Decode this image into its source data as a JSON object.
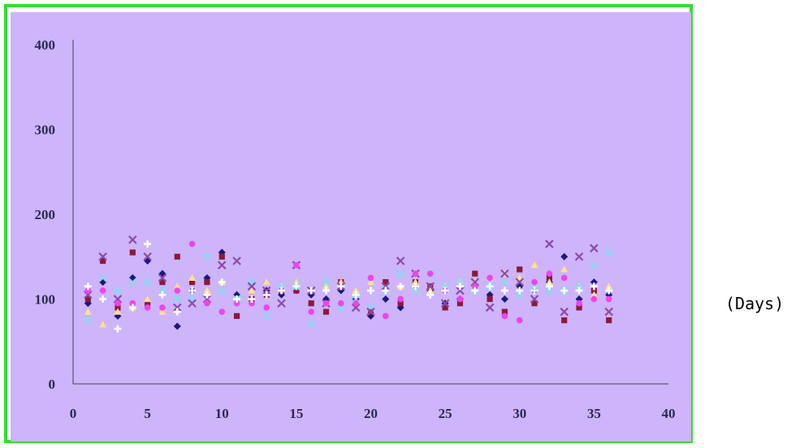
{
  "chart_data": {
    "type": "scatter",
    "title": "",
    "xlabel": "(Days)",
    "ylabel": "",
    "xlim": [
      0,
      40
    ],
    "ylim": [
      0,
      400
    ],
    "x_ticks": [
      "0",
      "5",
      "10",
      "15",
      "20",
      "25",
      "30",
      "35",
      "40"
    ],
    "y_ticks": [
      "0",
      "100",
      "200",
      "300",
      "400"
    ],
    "background_color": "#cdb4fb",
    "frame_color": "#33dd33",
    "grid": false,
    "legend": "none",
    "series": [
      {
        "color": "#1a1a7a",
        "marker": "diamond",
        "points": [
          [
            1,
            95
          ],
          [
            2,
            120
          ],
          [
            3,
            80
          ],
          [
            4,
            125
          ],
          [
            5,
            145
          ],
          [
            6,
            130
          ],
          [
            7,
            68
          ],
          [
            8,
            110
          ],
          [
            9,
            125
          ],
          [
            10,
            155
          ],
          [
            11,
            105
          ],
          [
            12,
            100
          ],
          [
            13,
            110
          ],
          [
            14,
            105
          ],
          [
            15,
            110
          ],
          [
            16,
            105
          ],
          [
            17,
            100
          ],
          [
            18,
            110
          ],
          [
            19,
            100
          ],
          [
            20,
            80
          ],
          [
            21,
            100
          ],
          [
            22,
            90
          ],
          [
            23,
            115
          ],
          [
            24,
            110
          ],
          [
            25,
            95
          ],
          [
            26,
            100
          ],
          [
            27,
            115
          ],
          [
            28,
            105
          ],
          [
            29,
            100
          ],
          [
            30,
            115
          ],
          [
            31,
            110
          ],
          [
            32,
            120
          ],
          [
            33,
            150
          ],
          [
            34,
            100
          ],
          [
            35,
            120
          ],
          [
            36,
            105
          ]
        ]
      },
      {
        "color": "#8b1a3a",
        "marker": "square",
        "points": [
          [
            1,
            100
          ],
          [
            2,
            145
          ],
          [
            3,
            90
          ],
          [
            4,
            155
          ],
          [
            5,
            95
          ],
          [
            6,
            120
          ],
          [
            7,
            150
          ],
          [
            8,
            120
          ],
          [
            9,
            120
          ],
          [
            10,
            150
          ],
          [
            11,
            80
          ],
          [
            12,
            100
          ],
          [
            13,
            105
          ],
          [
            14,
            110
          ],
          [
            15,
            110
          ],
          [
            16,
            95
          ],
          [
            17,
            85
          ],
          [
            18,
            120
          ],
          [
            19,
            95
          ],
          [
            20,
            85
          ],
          [
            21,
            120
          ],
          [
            22,
            95
          ],
          [
            23,
            120
          ],
          [
            24,
            115
          ],
          [
            25,
            90
          ],
          [
            26,
            95
          ],
          [
            27,
            130
          ],
          [
            28,
            100
          ],
          [
            29,
            85
          ],
          [
            30,
            135
          ],
          [
            31,
            95
          ],
          [
            32,
            125
          ],
          [
            33,
            75
          ],
          [
            34,
            90
          ],
          [
            35,
            110
          ],
          [
            36,
            75
          ]
        ]
      },
      {
        "color": "#ffe08a",
        "marker": "triangle",
        "points": [
          [
            1,
            85
          ],
          [
            2,
            70
          ],
          [
            3,
            85
          ],
          [
            4,
            90
          ],
          [
            5,
            100
          ],
          [
            6,
            85
          ],
          [
            7,
            115
          ],
          [
            8,
            125
          ],
          [
            9,
            110
          ],
          [
            10,
            120
          ],
          [
            11,
            100
          ],
          [
            12,
            110
          ],
          [
            13,
            120
          ],
          [
            14,
            115
          ],
          [
            15,
            120
          ],
          [
            16,
            110
          ],
          [
            17,
            115
          ],
          [
            18,
            120
          ],
          [
            19,
            110
          ],
          [
            20,
            120
          ],
          [
            21,
            110
          ],
          [
            22,
            115
          ],
          [
            23,
            120
          ],
          [
            24,
            110
          ],
          [
            25,
            115
          ],
          [
            26,
            120
          ],
          [
            27,
            120
          ],
          [
            28,
            125
          ],
          [
            29,
            130
          ],
          [
            30,
            125
          ],
          [
            31,
            140
          ],
          [
            32,
            120
          ],
          [
            33,
            135
          ],
          [
            34,
            115
          ],
          [
            35,
            105
          ],
          [
            36,
            115
          ]
        ]
      },
      {
        "color": "#8ad8f0",
        "marker": "x",
        "points": [
          [
            1,
            75
          ],
          [
            2,
            125
          ],
          [
            3,
            110
          ],
          [
            4,
            120
          ],
          [
            5,
            120
          ],
          [
            6,
            110
          ],
          [
            7,
            100
          ],
          [
            8,
            100
          ],
          [
            9,
            150
          ],
          [
            10,
            110
          ],
          [
            11,
            100
          ],
          [
            12,
            120
          ],
          [
            13,
            80
          ],
          [
            14,
            115
          ],
          [
            15,
            115
          ],
          [
            16,
            70
          ],
          [
            17,
            120
          ],
          [
            18,
            90
          ],
          [
            19,
            100
          ],
          [
            20,
            90
          ],
          [
            21,
            110
          ],
          [
            22,
            130
          ],
          [
            23,
            110
          ],
          [
            24,
            130
          ],
          [
            25,
            115
          ],
          [
            26,
            120
          ],
          [
            27,
            110
          ],
          [
            28,
            115
          ],
          [
            29,
            120
          ],
          [
            30,
            105
          ],
          [
            31,
            115
          ],
          [
            32,
            110
          ],
          [
            33,
            110
          ],
          [
            34,
            115
          ],
          [
            35,
            140
          ],
          [
            36,
            155
          ]
        ]
      },
      {
        "color": "#8e4aa8",
        "marker": "x",
        "points": [
          [
            1,
            105
          ],
          [
            2,
            150
          ],
          [
            3,
            100
          ],
          [
            4,
            170
          ],
          [
            5,
            150
          ],
          [
            6,
            125
          ],
          [
            7,
            90
          ],
          [
            8,
            95
          ],
          [
            9,
            100
          ],
          [
            10,
            140
          ],
          [
            11,
            145
          ],
          [
            12,
            115
          ],
          [
            13,
            110
          ],
          [
            14,
            95
          ],
          [
            15,
            140
          ],
          [
            16,
            110
          ],
          [
            17,
            95
          ],
          [
            18,
            115
          ],
          [
            19,
            90
          ],
          [
            20,
            85
          ],
          [
            21,
            115
          ],
          [
            22,
            145
          ],
          [
            23,
            130
          ],
          [
            24,
            115
          ],
          [
            25,
            95
          ],
          [
            26,
            110
          ],
          [
            27,
            120
          ],
          [
            28,
            90
          ],
          [
            29,
            130
          ],
          [
            30,
            120
          ],
          [
            31,
            100
          ],
          [
            32,
            165
          ],
          [
            33,
            85
          ],
          [
            34,
            150
          ],
          [
            35,
            160
          ],
          [
            36,
            85
          ]
        ]
      },
      {
        "color": "#ee44ee",
        "marker": "circle",
        "points": [
          [
            1,
            110
          ],
          [
            2,
            110
          ],
          [
            3,
            95
          ],
          [
            4,
            95
          ],
          [
            5,
            90
          ],
          [
            6,
            90
          ],
          [
            7,
            110
          ],
          [
            8,
            165
          ],
          [
            9,
            95
          ],
          [
            10,
            85
          ],
          [
            11,
            95
          ],
          [
            12,
            95
          ],
          [
            13,
            90
          ],
          [
            14,
            110
          ],
          [
            15,
            140
          ],
          [
            16,
            85
          ],
          [
            17,
            95
          ],
          [
            18,
            95
          ],
          [
            19,
            95
          ],
          [
            20,
            125
          ],
          [
            21,
            80
          ],
          [
            22,
            100
          ],
          [
            23,
            130
          ],
          [
            24,
            130
          ],
          [
            25,
            110
          ],
          [
            26,
            100
          ],
          [
            27,
            115
          ],
          [
            28,
            125
          ],
          [
            29,
            80
          ],
          [
            30,
            75
          ],
          [
            31,
            120
          ],
          [
            32,
            130
          ],
          [
            33,
            125
          ],
          [
            34,
            95
          ],
          [
            35,
            100
          ],
          [
            36,
            100
          ]
        ]
      },
      {
        "color": "#fffff4",
        "marker": "plus",
        "points": [
          [
            1,
            115
          ],
          [
            2,
            100
          ],
          [
            3,
            65
          ],
          [
            4,
            90
          ],
          [
            5,
            165
          ],
          [
            6,
            105
          ],
          [
            7,
            85
          ],
          [
            8,
            110
          ],
          [
            9,
            105
          ],
          [
            10,
            120
          ],
          [
            11,
            100
          ],
          [
            12,
            100
          ],
          [
            13,
            105
          ],
          [
            14,
            110
          ],
          [
            15,
            115
          ],
          [
            16,
            110
          ],
          [
            17,
            110
          ],
          [
            18,
            115
          ],
          [
            19,
            105
          ],
          [
            20,
            110
          ],
          [
            21,
            110
          ],
          [
            22,
            115
          ],
          [
            23,
            115
          ],
          [
            24,
            105
          ],
          [
            25,
            110
          ],
          [
            26,
            115
          ],
          [
            27,
            110
          ],
          [
            28,
            115
          ],
          [
            29,
            110
          ],
          [
            30,
            110
          ],
          [
            31,
            110
          ],
          [
            32,
            115
          ],
          [
            33,
            110
          ],
          [
            34,
            110
          ],
          [
            35,
            115
          ],
          [
            36,
            110
          ]
        ]
      }
    ]
  }
}
